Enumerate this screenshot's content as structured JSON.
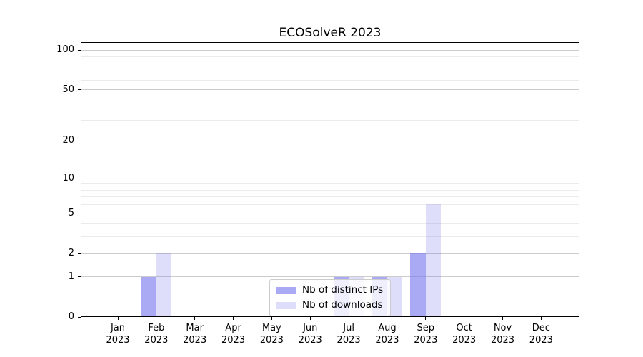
{
  "title": "ECOSolveR 2023",
  "chart_data": {
    "type": "bar",
    "title": "ECOSolveR 2023",
    "categories": [
      "Jan",
      "Feb",
      "Mar",
      "Apr",
      "May",
      "Jun",
      "Jul",
      "Aug",
      "Sep",
      "Oct",
      "Nov",
      "Dec"
    ],
    "x_year_line": "2023",
    "series": [
      {
        "name": "Nb of distinct IPs",
        "color": "rgba(116,116,238,0.62)",
        "values": [
          0,
          1,
          0,
          0,
          0,
          0,
          1,
          1,
          2,
          0,
          0,
          0
        ]
      },
      {
        "name": "Nb of downloads",
        "color": "rgba(116,116,238,0.24)",
        "values": [
          0,
          2,
          0,
          0,
          0,
          0,
          1,
          1,
          6,
          0,
          0,
          0
        ]
      }
    ],
    "xlabel": "",
    "ylabel": "",
    "y_scale": "log10(1+y)",
    "y_major_ticks": [
      0,
      1,
      2,
      5,
      10,
      20,
      50,
      100
    ],
    "y_minor_ticks": [
      3,
      4,
      6,
      7,
      8,
      9,
      19,
      29,
      39,
      49,
      59,
      69,
      79,
      89
    ],
    "ylim": [
      0,
      115
    ],
    "grid": true,
    "legend_position": "lower center"
  },
  "colors": {
    "background": "#ffffff",
    "bar_ips": "rgba(116,116,238,0.62)",
    "bar_downloads": "rgba(116,116,238,0.24)",
    "grid_major": "#cccccc",
    "grid_minor": "#ebebeb",
    "axis": "#000000",
    "legend_border": "#cccccc",
    "legend_background": "rgba(255,255,255,0.8)",
    "text": "#000000"
  }
}
